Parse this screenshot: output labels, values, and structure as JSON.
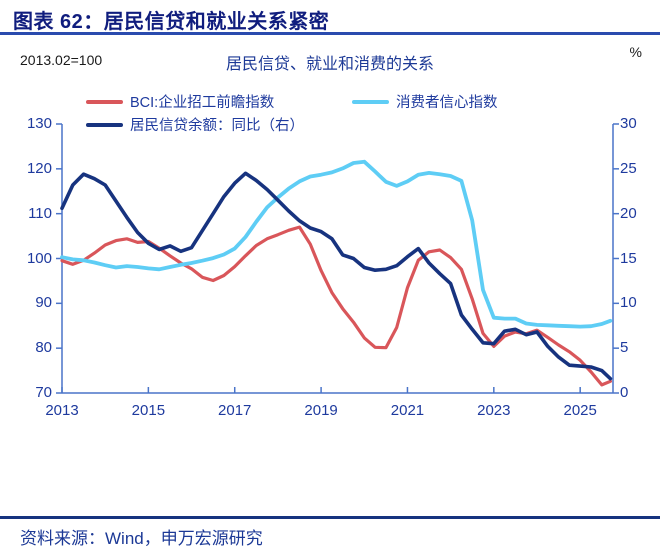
{
  "header": {
    "title": "图表 62：居民信贷和就业关系紧密"
  },
  "subheader": {
    "left_unit": "2013.02=100",
    "chart_title": "居民信贷、就业和消费的关系",
    "right_unit": "%"
  },
  "legend": [
    {
      "label": "BCI:企业招工前瞻指数",
      "color": "#d9565a"
    },
    {
      "label": "消费者信心指数",
      "color": "#5ecdf5"
    },
    {
      "label": "居民信贷余额：同比（右）",
      "color": "#17337f"
    }
  ],
  "footer": {
    "source": "资料来源：Wind，申万宏源研究"
  },
  "colors": {
    "title_navy": "#101d7e",
    "text_blue": "#1e3a9e",
    "axis_frame": "#4a74c9",
    "series_red": "#d9565a",
    "series_lightblue": "#5ecdf5",
    "series_navy": "#17337f"
  },
  "chart_data": {
    "type": "line",
    "title": "居民信贷、就业和消费的关系",
    "xlabel": "",
    "ylabel_left": "2013.02=100",
    "ylabel_right": "%",
    "grid": false,
    "legend_position": "top",
    "x_ticks": [
      2013,
      2015,
      2017,
      2019,
      2021,
      2023,
      2025
    ],
    "left_axis": {
      "min": 70,
      "max": 130,
      "ticks": [
        70,
        80,
        90,
        100,
        110,
        120,
        130
      ]
    },
    "right_axis": {
      "min": 0,
      "max": 30,
      "ticks": [
        0,
        5,
        10,
        15,
        20,
        25,
        30
      ]
    },
    "x": [
      2013,
      2013.25,
      2013.5,
      2013.75,
      2014,
      2014.25,
      2014.5,
      2014.75,
      2015,
      2015.25,
      2015.5,
      2015.75,
      2016,
      2016.25,
      2016.5,
      2016.75,
      2017,
      2017.25,
      2017.5,
      2017.75,
      2018,
      2018.25,
      2018.5,
      2018.75,
      2019,
      2019.25,
      2019.5,
      2019.75,
      2020,
      2020.25,
      2020.5,
      2020.75,
      2021,
      2021.25,
      2021.5,
      2021.75,
      2022,
      2022.25,
      2022.5,
      2022.75,
      2023,
      2023.25,
      2023.5,
      2023.75,
      2024,
      2024.25,
      2024.5,
      2024.75,
      2025,
      2025.25,
      2025.5,
      2025.7
    ],
    "series": [
      {
        "name": "BCI:企业招工前瞻指数",
        "axis": "left",
        "color": "#d9565a",
        "width": 3.2,
        "values": [
          99.5,
          98.7,
          99.6,
          101.2,
          103.0,
          104.0,
          104.4,
          103.6,
          103.8,
          102.3,
          100.6,
          99.0,
          97.7,
          95.8,
          95.1,
          96.2,
          98.2,
          100.6,
          102.9,
          104.4,
          105.3,
          106.3,
          107.0,
          103.2,
          97.3,
          92.4,
          88.8,
          85.8,
          82.3,
          80.2,
          80.1,
          84.6,
          93.5,
          99.6,
          101.5,
          101.9,
          100.2,
          97.6,
          91.0,
          83.3,
          80.4,
          82.7,
          83.6,
          83.2,
          84.0,
          82.4,
          80.7,
          79.2,
          77.3,
          74.7,
          71.8,
          72.6
        ]
      },
      {
        "name": "消费者信心指数",
        "axis": "left",
        "color": "#5ecdf5",
        "width": 3.8,
        "values": [
          100.3,
          99.8,
          99.6,
          99.1,
          98.5,
          98.0,
          98.3,
          98.1,
          97.8,
          97.6,
          98.1,
          98.6,
          99.0,
          99.5,
          100.1,
          100.9,
          102.2,
          104.8,
          108.2,
          111.4,
          113.6,
          115.6,
          117.2,
          118.3,
          118.7,
          119.2,
          120.1,
          121.3,
          121.6,
          119.4,
          117.1,
          116.2,
          117.2,
          118.7,
          119.1,
          118.8,
          118.4,
          117.3,
          108.5,
          93.0,
          86.8,
          86.6,
          86.6,
          85.5,
          85.2,
          85.1,
          85.0,
          84.9,
          84.8,
          84.9,
          85.4,
          86.1
        ]
      },
      {
        "name": "居民信贷余额：同比（右）",
        "axis": "right",
        "color": "#17337f",
        "width": 3.6,
        "values": [
          20.6,
          23.2,
          24.4,
          23.9,
          23.2,
          21.4,
          19.6,
          17.9,
          16.7,
          16.0,
          16.4,
          15.8,
          16.2,
          18.1,
          20.0,
          21.9,
          23.4,
          24.5,
          23.7,
          22.7,
          21.5,
          20.3,
          19.2,
          18.4,
          18.0,
          17.2,
          15.4,
          15.0,
          14.0,
          13.7,
          13.8,
          14.2,
          15.2,
          16.1,
          14.5,
          13.3,
          12.2,
          8.7,
          7.1,
          5.6,
          5.5,
          6.9,
          7.1,
          6.5,
          6.8,
          5.2,
          4.0,
          3.1,
          3.0,
          2.9,
          2.5,
          1.6
        ]
      }
    ]
  }
}
